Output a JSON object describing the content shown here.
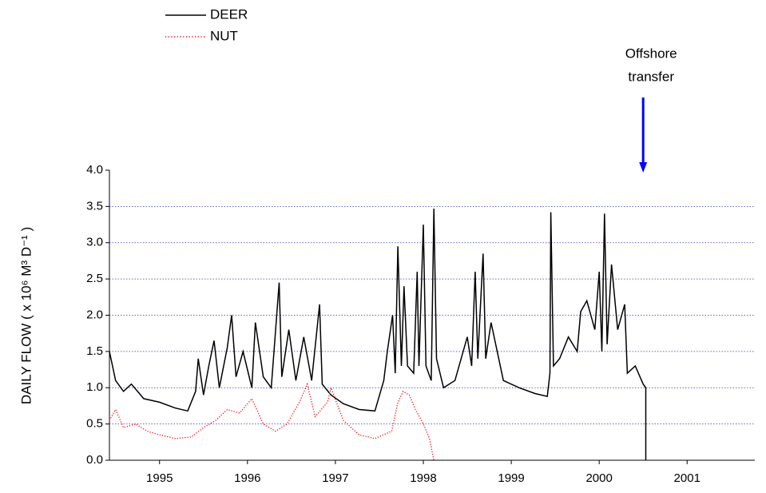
{
  "chart_data": {
    "type": "line",
    "y_label": "DAILY FLOW  ( x 10⁶ M³ D⁻¹ )",
    "xlim": [
      1994.93,
      2002.27
    ],
    "xticks": [
      {
        "value": 1995.5,
        "label": "1995"
      },
      {
        "value": 1996.5,
        "label": "1996"
      },
      {
        "value": 1997.5,
        "label": "1997"
      },
      {
        "value": 1998.5,
        "label": "1998"
      },
      {
        "value": 1999.5,
        "label": "1999"
      },
      {
        "value": 2000.5,
        "label": "2000"
      },
      {
        "value": 2001.5,
        "label": "2001"
      }
    ],
    "ylim": [
      0,
      4
    ],
    "yticks": [
      {
        "value": 0,
        "label": "0.0"
      },
      0.5,
      {
        "value": 1,
        "label": "1.0"
      },
      1.5,
      {
        "value": 2,
        "label": "2.0"
      },
      2.5,
      {
        "value": 3,
        "label": "3.0"
      },
      3.5,
      {
        "value": 4,
        "label": "4.0"
      }
    ],
    "grid": true,
    "grid_color": "#3333cc",
    "series": [
      {
        "name": "DEER",
        "color": "#000000",
        "dash": "solid",
        "x": [
          1994.93,
          1995.0,
          1995.09,
          1995.18,
          1995.32,
          1995.5,
          1995.68,
          1995.82,
          1995.91,
          1995.94,
          1996.0,
          1996.06,
          1996.12,
          1996.18,
          1996.27,
          1996.32,
          1996.37,
          1996.45,
          1996.55,
          1996.59,
          1996.68,
          1996.77,
          1996.86,
          1996.89,
          1996.97,
          1997.05,
          1997.14,
          1997.23,
          1997.32,
          1997.35,
          1997.45,
          1997.59,
          1997.77,
          1997.95,
          1998.05,
          1998.09,
          1998.15,
          1998.18,
          1998.21,
          1998.25,
          1998.28,
          1998.32,
          1998.39,
          1998.43,
          1998.45,
          1998.5,
          1998.53,
          1998.59,
          1998.62,
          1998.65,
          1998.73,
          1998.86,
          1999.0,
          1999.05,
          1999.09,
          1999.12,
          1999.18,
          1999.21,
          1999.27,
          1999.41,
          1999.59,
          1999.77,
          1999.91,
          1999.94,
          1999.95,
          1999.98,
          2000.05,
          2000.15,
          2000.25,
          2000.29,
          2000.36,
          2000.45,
          2000.5,
          2000.53,
          2000.56,
          2000.59,
          2000.64,
          2000.71,
          2000.79,
          2000.82,
          2000.91,
          2001.0,
          2001.03,
          2001.03
        ],
        "values": [
          1.5,
          1.1,
          0.95,
          1.05,
          0.85,
          0.8,
          0.72,
          0.68,
          0.95,
          1.4,
          0.9,
          1.3,
          1.65,
          1.0,
          1.55,
          2.0,
          1.15,
          1.5,
          1.0,
          1.9,
          1.15,
          1.0,
          2.45,
          1.15,
          1.8,
          1.1,
          1.7,
          1.1,
          2.15,
          1.05,
          0.9,
          0.78,
          0.7,
          0.68,
          1.1,
          1.5,
          2.0,
          1.2,
          2.95,
          1.3,
          2.4,
          1.3,
          1.2,
          2.6,
          1.3,
          3.25,
          1.3,
          1.1,
          3.47,
          1.4,
          1.0,
          1.1,
          1.7,
          1.3,
          2.6,
          1.4,
          2.85,
          1.4,
          1.9,
          1.1,
          1.0,
          0.92,
          0.88,
          1.2,
          3.42,
          1.3,
          1.4,
          1.7,
          1.5,
          2.05,
          2.2,
          1.8,
          2.6,
          1.5,
          3.4,
          1.6,
          2.7,
          1.8,
          2.15,
          1.2,
          1.3,
          1.05,
          1.0,
          0.0
        ]
      },
      {
        "name": "NUT",
        "color": "#ff0000",
        "dash": "dotted",
        "x": [
          1994.93,
          1995.0,
          1995.09,
          1995.23,
          1995.36,
          1995.5,
          1995.68,
          1995.86,
          1996.0,
          1996.14,
          1996.27,
          1996.41,
          1996.55,
          1996.68,
          1996.82,
          1996.95,
          1997.09,
          1997.18,
          1997.27,
          1997.41,
          1997.45,
          1997.59,
          1997.77,
          1997.95,
          1998.14,
          1998.21,
          1998.27,
          1998.34,
          1998.41,
          1998.5,
          1998.57,
          1998.62
        ],
        "values": [
          0.55,
          0.7,
          0.45,
          0.5,
          0.4,
          0.35,
          0.3,
          0.32,
          0.45,
          0.55,
          0.7,
          0.65,
          0.85,
          0.5,
          0.4,
          0.5,
          0.8,
          1.05,
          0.6,
          0.8,
          1.0,
          0.55,
          0.35,
          0.3,
          0.4,
          0.8,
          0.95,
          0.9,
          0.7,
          0.5,
          0.3,
          0.0
        ]
      }
    ],
    "annotation": {
      "lines": [
        "Offshore",
        "transfer"
      ],
      "x": 2001.0,
      "color": "#0000ff"
    }
  }
}
